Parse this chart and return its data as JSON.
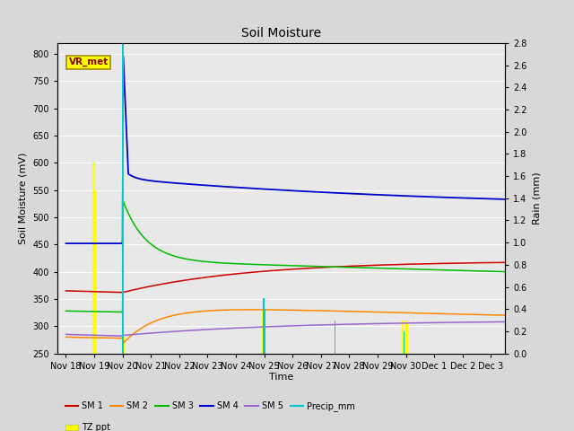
{
  "title": "Soil Moisture",
  "xlabel": "Time",
  "ylabel_left": "Soil Moisture (mV)",
  "ylabel_right": "Rain (mm)",
  "ylim_left": [
    250,
    820
  ],
  "ylim_right": [
    0.0,
    2.8
  ],
  "yticks_left": [
    250,
    300,
    350,
    400,
    450,
    500,
    550,
    600,
    650,
    700,
    750,
    800
  ],
  "yticks_right": [
    0.0,
    0.2,
    0.4,
    0.6,
    0.8,
    1.0,
    1.2,
    1.4,
    1.6,
    1.8,
    2.0,
    2.2,
    2.4,
    2.6,
    2.8
  ],
  "bg_color": "#d8d8d8",
  "plot_bg_color": "#e8e8e8",
  "sm1_color": "#cc0000",
  "sm2_color": "#ff8800",
  "sm3_color": "#00bb00",
  "sm4_color": "#0000cc",
  "sm5_color": "#9966cc",
  "precip_color": "#00cccc",
  "tz_ppt_color": "#ffff00",
  "vr_met_box_color": "#ffff00",
  "vr_met_text_color": "#880000",
  "grid_color": "#ffffff",
  "xtick_labels": [
    "Nov 18",
    "Nov 19",
    "Nov 20",
    "Nov 21",
    "Nov 22",
    "Nov 23",
    "Nov 24",
    "Nov 25",
    "Nov 26",
    "Nov 27",
    "Nov 28",
    "Nov 29",
    "Nov 30",
    "Dec 1",
    "Dec 2",
    "Dec 3"
  ],
  "xtick_positions": [
    0,
    1,
    2,
    3,
    4,
    5,
    6,
    7,
    8,
    9,
    10,
    11,
    12,
    13,
    14,
    15
  ],
  "tz_ppt_positions": [
    0.97,
    1.03,
    1.97,
    2.03,
    2.08,
    6.95,
    7.02,
    11.88,
    11.97,
    12.05
  ],
  "tz_ppt_heights": [
    600,
    550,
    550,
    400,
    280,
    330,
    300,
    310,
    310,
    305
  ],
  "precip_positions": [
    2.0,
    6.97,
    7.03,
    9.5,
    11.93
  ],
  "precip_heights": [
    2.8,
    0.5,
    0.4,
    0.3,
    0.2
  ]
}
